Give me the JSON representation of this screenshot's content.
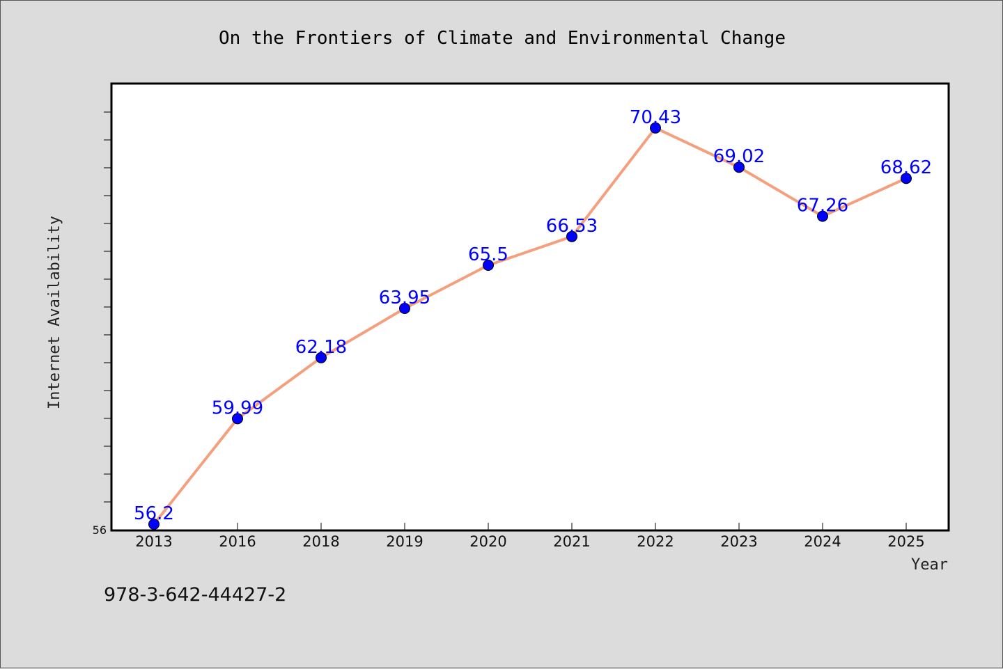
{
  "chart_data": {
    "type": "line",
    "title": "On the Frontiers of Climate and Environmental Change",
    "xlabel": "Year",
    "ylabel": "Internet Availability",
    "categories": [
      "2013",
      "2016",
      "2018",
      "2019",
      "2020",
      "2021",
      "2022",
      "2023",
      "2024",
      "2025"
    ],
    "series": [
      {
        "values": [
          56.2,
          59.99,
          62.18,
          63.95,
          65.5,
          66.53,
          70.43,
          69.02,
          67.26,
          68.62
        ],
        "labels": [
          "56.2",
          "59.99",
          "62.18",
          "63.95",
          "65.5",
          "66.53",
          "70.43",
          "69.02",
          "67.26",
          "68.62"
        ]
      }
    ],
    "ylim": [
      56,
      72
    ],
    "ytick_labels": [
      "56"
    ],
    "grid": false,
    "legend": "none",
    "colors": {
      "line": "#f4a07e",
      "marker": "#0000ff",
      "data_label": "#0000ff",
      "background": "#dcdcdc",
      "plot_background": "#ffffff"
    }
  },
  "footer": {
    "isbn": "978-3-642-44427-2"
  }
}
